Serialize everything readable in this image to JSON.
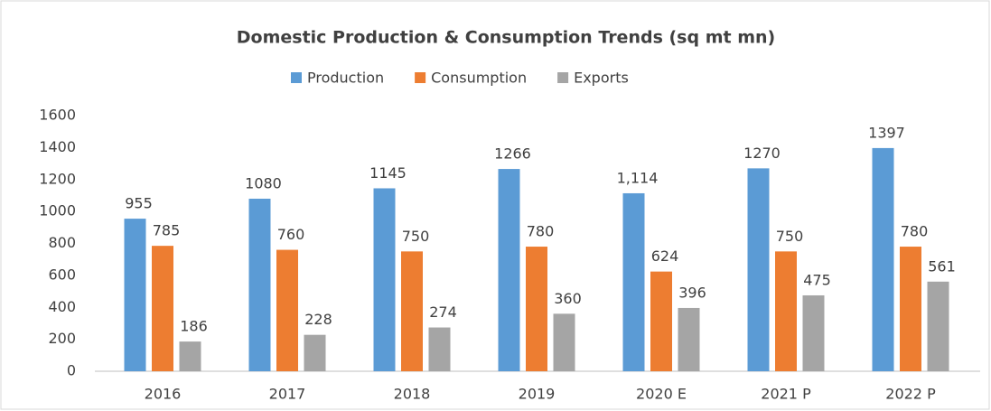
{
  "chart_data": {
    "type": "bar",
    "title": "Domestic Production & Consumption Trends (sq mt mn)",
    "categories": [
      "2016",
      "2017",
      "2018",
      "2019",
      "2020 E",
      "2021 P",
      "2022 P"
    ],
    "series": [
      {
        "name": "Production",
        "color": "#5b9bd5",
        "values": [
          955,
          1080,
          1145,
          1266,
          1114,
          1270,
          1397
        ],
        "value_labels": [
          "955",
          "1080",
          "1145",
          "1266",
          "1,114",
          "1270",
          "1397"
        ]
      },
      {
        "name": "Consumption",
        "color": "#ed7d31",
        "values": [
          785,
          760,
          750,
          780,
          624,
          750,
          780
        ]
      },
      {
        "name": "Exports",
        "color": "#a5a5a5",
        "values": [
          186,
          228,
          274,
          360,
          396,
          475,
          561
        ]
      }
    ],
    "ylim": [
      0,
      1600
    ],
    "yticks": [
      0,
      200,
      400,
      600,
      800,
      1000,
      1200,
      1400,
      1600
    ],
    "grid": false,
    "legend": "top"
  }
}
